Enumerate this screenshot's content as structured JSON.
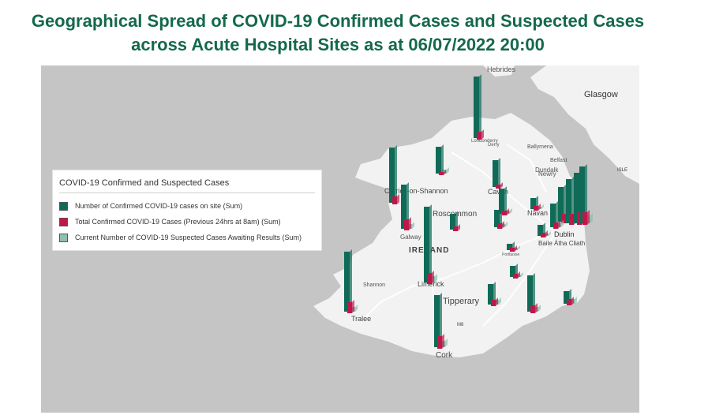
{
  "title": {
    "line1": "Geographical Spread of COVID-19 Confirmed Cases and Suspected Cases",
    "line2": "across Acute Hospital Sites as at 06/07/2022 20:00"
  },
  "legend": {
    "title": "COVID-19 Confirmed and Suspected Cases",
    "items": [
      {
        "label": "Number of Confirmed COVID-19 cases on site (Sum)",
        "color": "#0f6b57"
      },
      {
        "label": "Total Confirmed COVID-19 Cases (Previous 24hrs at 8am) (Sum)",
        "color": "#c0174a"
      },
      {
        "label": "Current Number of COVID-19 Suspected Cases Awaiting Results (Sum)",
        "color": "#8fbfae"
      }
    ]
  },
  "colors": {
    "confirmed": "#0f6b57",
    "previous24": "#c0174a",
    "suspected": "#8fbfae",
    "water": "#c5c5c5",
    "land": "#f2f2f2",
    "title": "#14694b"
  },
  "map_labels": {
    "hebrides": "Hebrides",
    "glasgow": "Glasgow",
    "londonderry": "Londonderry",
    "derry": "Derry",
    "ballymena": "Ballymena",
    "belfast": "Belfast",
    "isle": "ISLE",
    "newry": "Newry",
    "carrick": "Carrick-on-Shannon",
    "cavan": "Cavan",
    "dundalk": "Dundalk",
    "roscommon": "Roscommon",
    "navan": "Navan",
    "galway": "Galway",
    "dublin": "Dublin",
    "baile": "Baile Átha Cliath",
    "ireland": "IRELAND",
    "portlaoise": "Portlaoise",
    "shannon": "Shannon",
    "limerick": "Limerick",
    "tipperary": "Tipperary",
    "tralee": "Tralee",
    "cork": "Cork",
    "m8": "M8"
  }
}
